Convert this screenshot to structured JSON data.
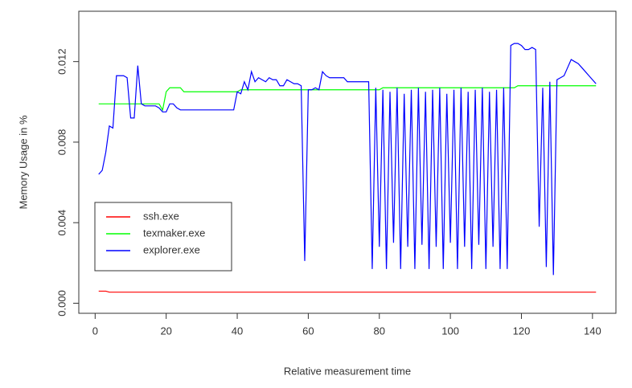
{
  "chart_data": {
    "type": "line",
    "x_label": "Relative measurement time",
    "y_label": "Memory Usage in %",
    "xlim": [
      -4.6,
      146.6
    ],
    "ylim": [
      -0.0005,
      0.0145
    ],
    "xticks": [
      0,
      20,
      40,
      60,
      80,
      100,
      120,
      140
    ],
    "yticks": [
      {
        "value": 0,
        "label": "0.000"
      },
      0.004,
      0.008,
      0.012
    ],
    "legend": "bottomleft",
    "x": [
      1,
      2,
      3,
      4,
      5,
      6,
      7,
      8,
      9,
      10,
      11,
      12,
      13,
      14,
      15,
      16,
      17,
      18,
      19,
      20,
      21,
      22,
      23,
      24,
      25,
      26,
      27,
      28,
      29,
      30,
      31,
      32,
      33,
      34,
      35,
      36,
      37,
      38,
      39,
      40,
      41,
      42,
      43,
      44,
      45,
      46,
      47,
      48,
      49,
      50,
      51,
      52,
      53,
      54,
      55,
      56,
      57,
      58,
      59,
      60,
      61,
      62,
      63,
      64,
      65,
      66,
      67,
      68,
      69,
      70,
      71,
      72,
      73,
      74,
      75,
      76,
      77,
      78,
      79,
      80,
      81,
      82,
      83,
      84,
      85,
      86,
      87,
      88,
      89,
      90,
      91,
      92,
      93,
      94,
      95,
      96,
      97,
      98,
      99,
      100,
      101,
      102,
      103,
      104,
      105,
      106,
      107,
      108,
      109,
      110,
      111,
      112,
      113,
      114,
      115,
      116,
      117,
      118,
      119,
      120,
      121,
      122,
      123,
      124,
      125,
      126,
      127,
      128,
      129,
      130,
      131,
      132,
      133,
      134,
      135,
      136,
      137,
      138,
      139,
      140,
      141
    ],
    "series": [
      {
        "name": "ssh.exe",
        "color": "#ff0000",
        "values": [
          0.0006,
          0.0006,
          0.0006,
          0.00055,
          0.00055,
          0.00055,
          0.00055,
          0.00055,
          0.00055,
          0.00055,
          0.00055,
          0.00055,
          0.00055,
          0.00055,
          0.00055,
          0.00055,
          0.00055,
          0.00055,
          0.00055,
          0.00055,
          0.00055,
          0.00055,
          0.00055,
          0.00055,
          0.00055,
          0.00055,
          0.00055,
          0.00055,
          0.00055,
          0.00055,
          0.00055,
          0.00055,
          0.00055,
          0.00055,
          0.00055,
          0.00055,
          0.00055,
          0.00055,
          0.00055,
          0.00055,
          0.00055,
          0.00055,
          0.00055,
          0.00055,
          0.00055,
          0.00055,
          0.00055,
          0.00055,
          0.00055,
          0.00055,
          0.00055,
          0.00055,
          0.00055,
          0.00055,
          0.00055,
          0.00055,
          0.00055,
          0.00055,
          0.00055,
          0.00055,
          0.00055,
          0.00055,
          0.00055,
          0.00055,
          0.00055,
          0.00055,
          0.00055,
          0.00055,
          0.00055,
          0.00055,
          0.00055,
          0.00055,
          0.00055,
          0.00055,
          0.00055,
          0.00055,
          0.00055,
          0.00055,
          0.00055,
          0.00055,
          0.00055,
          0.00055,
          0.00055,
          0.00055,
          0.00055,
          0.00055,
          0.00055,
          0.00055,
          0.00055,
          0.00055,
          0.00055,
          0.00055,
          0.00055,
          0.00055,
          0.00055,
          0.00055,
          0.00055,
          0.00055,
          0.00055,
          0.00055,
          0.00055,
          0.00055,
          0.00055,
          0.00055,
          0.00055,
          0.00055,
          0.00055,
          0.00055,
          0.00055,
          0.00055,
          0.00055,
          0.00055,
          0.00055,
          0.00055,
          0.00055,
          0.00055,
          0.00055,
          0.00055,
          0.00055,
          0.00055,
          0.00055,
          0.00055,
          0.00055,
          0.00055,
          0.00055,
          0.00055,
          0.00055,
          0.00055,
          0.00055,
          0.00055,
          0.00055,
          0.00055,
          0.00055,
          0.00055,
          0.00055,
          0.00055,
          0.00055,
          0.00055,
          0.00055,
          0.00055,
          0.00055
        ]
      },
      {
        "name": "texmaker.exe",
        "color": "#00ff00",
        "values": [
          0.0099,
          0.0099,
          0.0099,
          0.0099,
          0.0099,
          0.0099,
          0.0099,
          0.0099,
          0.0099,
          0.0099,
          0.0099,
          0.0099,
          0.0099,
          0.0099,
          0.0099,
          0.0099,
          0.0099,
          0.0099,
          0.0096,
          0.0105,
          0.0107,
          0.0107,
          0.0107,
          0.0107,
          0.0105,
          0.0105,
          0.0105,
          0.0105,
          0.0105,
          0.0105,
          0.0105,
          0.0105,
          0.0105,
          0.0105,
          0.0105,
          0.0105,
          0.0105,
          0.0105,
          0.0105,
          0.0105,
          0.0106,
          0.0106,
          0.0106,
          0.0106,
          0.0106,
          0.0106,
          0.0106,
          0.0106,
          0.0106,
          0.0106,
          0.0106,
          0.0106,
          0.0106,
          0.0106,
          0.0106,
          0.0106,
          0.0106,
          0.0106,
          0.0106,
          0.0106,
          0.0106,
          0.0106,
          0.0106,
          0.0106,
          0.0106,
          0.0106,
          0.0106,
          0.0106,
          0.0106,
          0.0106,
          0.0106,
          0.0106,
          0.0106,
          0.0106,
          0.0106,
          0.0106,
          0.0106,
          0.0106,
          0.0106,
          0.0106,
          0.0107,
          0.0107,
          0.0107,
          0.0107,
          0.0107,
          0.0107,
          0.0107,
          0.0107,
          0.0107,
          0.0107,
          0.0107,
          0.0107,
          0.0107,
          0.0107,
          0.0107,
          0.0107,
          0.0107,
          0.0107,
          0.0107,
          0.0107,
          0.0107,
          0.0107,
          0.0107,
          0.0107,
          0.0107,
          0.0107,
          0.0107,
          0.0107,
          0.0107,
          0.0107,
          0.0107,
          0.0107,
          0.0107,
          0.0107,
          0.0107,
          0.0107,
          0.0107,
          0.0107,
          0.0108,
          0.0108,
          0.0108,
          0.0108,
          0.0108,
          0.0108,
          0.0108,
          0.0108,
          0.0108,
          0.0108,
          0.0108,
          0.0108,
          0.0108,
          0.0108,
          0.0108,
          0.0108,
          0.0108,
          0.0108,
          0.0108,
          0.0108,
          0.0108,
          0.0108,
          0.0108
        ]
      },
      {
        "name": "explorer.exe",
        "color": "#0000ff",
        "values": [
          0.0064,
          0.0066,
          0.0075,
          0.0088,
          0.0087,
          0.0113,
          0.0113,
          0.0113,
          0.0112,
          0.0092,
          0.0092,
          0.0118,
          0.0099,
          0.0098,
          0.0098,
          0.0098,
          0.0098,
          0.0097,
          0.0095,
          0.0095,
          0.0099,
          0.0099,
          0.0097,
          0.0096,
          0.0096,
          0.0096,
          0.0096,
          0.0096,
          0.0096,
          0.0096,
          0.0096,
          0.0096,
          0.0096,
          0.0096,
          0.0096,
          0.0096,
          0.0096,
          0.0096,
          0.0096,
          0.0105,
          0.0104,
          0.011,
          0.0106,
          0.0115,
          0.011,
          0.0112,
          0.0111,
          0.011,
          0.0112,
          0.0111,
          0.0111,
          0.0108,
          0.0108,
          0.0111,
          0.011,
          0.0109,
          0.0109,
          0.0108,
          0.0021,
          0.0106,
          0.0106,
          0.0107,
          0.0106,
          0.0115,
          0.0113,
          0.0112,
          0.0112,
          0.0112,
          0.0112,
          0.0112,
          0.011,
          0.011,
          0.011,
          0.011,
          0.011,
          0.011,
          0.011,
          0.0017,
          0.0107,
          0.0028,
          0.0106,
          0.0017,
          0.0105,
          0.003,
          0.0107,
          0.0017,
          0.0104,
          0.0028,
          0.0106,
          0.0017,
          0.0107,
          0.0029,
          0.0105,
          0.0017,
          0.0106,
          0.0028,
          0.0107,
          0.0017,
          0.0104,
          0.003,
          0.0106,
          0.0017,
          0.0107,
          0.0028,
          0.0105,
          0.0017,
          0.0106,
          0.0029,
          0.0107,
          0.0017,
          0.0105,
          0.0028,
          0.0106,
          0.0017,
          0.0107,
          0.0017,
          0.0128,
          0.0129,
          0.0129,
          0.0128,
          0.0126,
          0.0126,
          0.0127,
          0.0126,
          0.0038,
          0.0107,
          0.0018,
          0.011,
          0.0014,
          0.0111,
          0.0112,
          0.0113,
          0.0117,
          0.0121,
          0.012,
          0.0119,
          0.0117,
          0.0115,
          0.0113,
          0.0111,
          0.0109
        ]
      }
    ]
  }
}
